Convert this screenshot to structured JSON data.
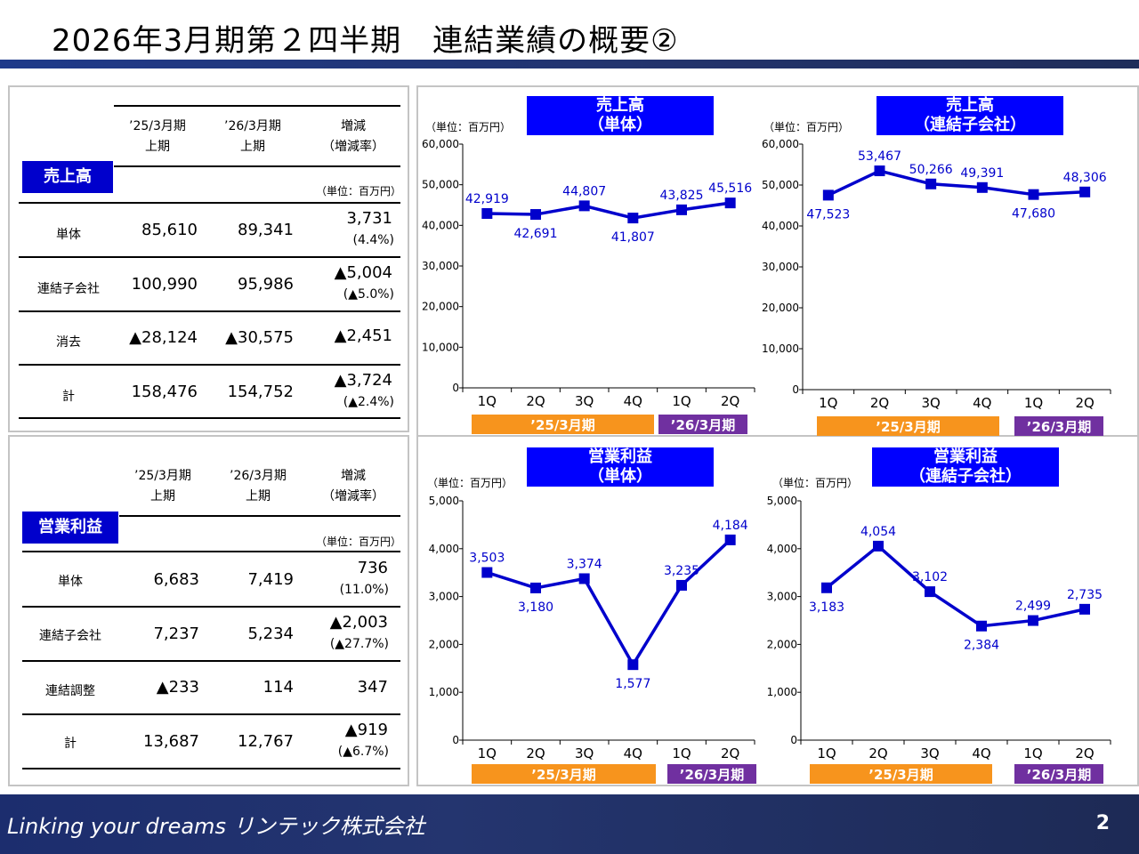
{
  "header": {
    "title": "2026年3月期第２四半期　連結業績の概要②"
  },
  "sales_table": {
    "badge": "売上高",
    "col1": "’25/3月期\n上期",
    "col2": "’26/3月期\n上期",
    "col3": "増減\n（増減率）",
    "unit": "（単位：百万円）",
    "rows": [
      {
        "label": "単体",
        "v1": "85,610",
        "v2": "89,341",
        "diff": "3,731",
        "rate": "(4.4%)"
      },
      {
        "label": "連結子会社",
        "v1": "100,990",
        "v2": "95,986",
        "diff": "▲5,004",
        "rate": "(▲5.0%)"
      },
      {
        "label": "消去",
        "v1": "▲28,124",
        "v2": "▲30,575",
        "diff": "▲2,451",
        "rate": ""
      },
      {
        "label": "計",
        "v1": "158,476",
        "v2": "154,752",
        "diff": "▲3,724",
        "rate": "(▲2.4%)"
      }
    ]
  },
  "op_table": {
    "badge": "営業利益",
    "col1": "’25/3月期\n上期",
    "col2": "’26/3月期\n上期",
    "col3": "増減\n（増減率）",
    "unit": "（単位：百万円）",
    "rows": [
      {
        "label": "単体",
        "v1": "6,683",
        "v2": "7,419",
        "diff": "736",
        "rate": "(11.0%)"
      },
      {
        "label": "連結子会社",
        "v1": "7,237",
        "v2": "5,234",
        "diff": "▲2,003",
        "rate": "(▲27.7%)"
      },
      {
        "label": "連結調整",
        "v1": "▲233",
        "v2": "114",
        "diff": "347",
        "rate": ""
      },
      {
        "label": "計",
        "v1": "13,687",
        "v2": "12,767",
        "diff": "▲919",
        "rate": "(▲6.7%)"
      }
    ]
  },
  "colors": {
    "line": "#0000cc",
    "title_bg": "#0000ff",
    "fy25": "#f7941d",
    "fy26": "#7030a0"
  },
  "chart_data": [
    {
      "type": "line",
      "id": "sales-single",
      "title": "売上高\n（単体）",
      "unit": "（単位：百万円）",
      "categories": [
        "1Q",
        "2Q",
        "3Q",
        "4Q",
        "1Q",
        "2Q"
      ],
      "values": [
        42919,
        42691,
        44807,
        41807,
        43825,
        45516
      ],
      "labels": [
        "42,919",
        "42,691",
        "44,807",
        "41,807",
        "43,825",
        "45,516"
      ],
      "label_pos": [
        "above",
        "below",
        "above",
        "below",
        "above",
        "above"
      ],
      "ylim": [
        0,
        60000
      ],
      "yticks": [
        "0",
        "10,000",
        "20,000",
        "30,000",
        "40,000",
        "50,000",
        "60,000"
      ],
      "fy_labels": [
        "’25/3月期",
        "’26/3月期"
      ]
    },
    {
      "type": "line",
      "id": "sales-sub",
      "title": "売上高\n（連結子会社）",
      "unit": "（単位：百万円）",
      "categories": [
        "1Q",
        "2Q",
        "3Q",
        "4Q",
        "1Q",
        "2Q"
      ],
      "values": [
        47523,
        53467,
        50266,
        49391,
        47680,
        48306
      ],
      "labels": [
        "47,523",
        "53,467",
        "50,266",
        "49,391",
        "47,680",
        "48,306"
      ],
      "label_pos": [
        "below",
        "above",
        "above",
        "above",
        "below",
        "above"
      ],
      "ylim": [
        0,
        60000
      ],
      "yticks": [
        "0",
        "10,000",
        "20,000",
        "30,000",
        "40,000",
        "50,000",
        "60,000"
      ],
      "fy_labels": [
        "’25/3月期",
        "’26/3月期"
      ]
    },
    {
      "type": "line",
      "id": "op-single",
      "title": "営業利益\n（単体）",
      "unit": "（単位：百万円）",
      "categories": [
        "1Q",
        "2Q",
        "3Q",
        "4Q",
        "1Q",
        "2Q"
      ],
      "values": [
        3503,
        3180,
        3374,
        1577,
        3235,
        4184
      ],
      "labels": [
        "3,503",
        "3,180",
        "3,374",
        "1,577",
        "3,235",
        "4,184"
      ],
      "label_pos": [
        "above",
        "below",
        "above",
        "below",
        "above",
        "above"
      ],
      "ylim": [
        0,
        5000
      ],
      "yticks": [
        "0",
        "1,000",
        "2,000",
        "3,000",
        "4,000",
        "5,000"
      ],
      "fy_labels": [
        "’25/3月期",
        "’26/3月期"
      ]
    },
    {
      "type": "line",
      "id": "op-sub",
      "title": "営業利益\n（連結子会社）",
      "unit": "（単位：百万円）",
      "categories": [
        "1Q",
        "2Q",
        "3Q",
        "4Q",
        "1Q",
        "2Q"
      ],
      "values": [
        3183,
        4054,
        3102,
        2384,
        2499,
        2735
      ],
      "labels": [
        "3,183",
        "4,054",
        "3,102",
        "2,384",
        "2,499",
        "2,735"
      ],
      "label_pos": [
        "below",
        "above",
        "above",
        "below",
        "above",
        "above"
      ],
      "ylim": [
        0,
        5000
      ],
      "yticks": [
        "0",
        "1,000",
        "2,000",
        "3,000",
        "4,000",
        "5,000"
      ],
      "fy_labels": [
        "’25/3月期",
        "’26/3月期"
      ]
    }
  ],
  "footer": {
    "slogan": "Linking your dreams  リンテック株式会社",
    "page": "2"
  }
}
